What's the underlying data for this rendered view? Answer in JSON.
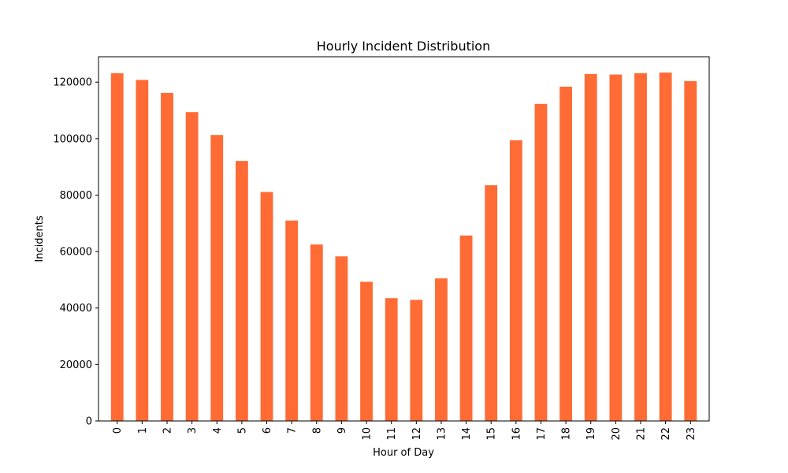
{
  "chart_data": {
    "type": "bar",
    "title": "Hourly Incident Distribution",
    "xlabel": "Hour of Day",
    "ylabel": "Incidents",
    "categories": [
      "0",
      "1",
      "2",
      "3",
      "4",
      "5",
      "6",
      "7",
      "8",
      "9",
      "10",
      "11",
      "12",
      "13",
      "14",
      "15",
      "16",
      "17",
      "18",
      "19",
      "20",
      "21",
      "22",
      "23"
    ],
    "values": [
      123200,
      120800,
      116200,
      109400,
      101300,
      92100,
      81100,
      71000,
      62500,
      58300,
      49300,
      43500,
      42900,
      50500,
      65700,
      83500,
      99400,
      112300,
      118400,
      122900,
      122700,
      123200,
      123400,
      120400
    ],
    "ylim": [
      0,
      129000
    ],
    "yticks": [
      0,
      20000,
      40000,
      60000,
      80000,
      100000,
      120000
    ],
    "bar_color": "#ff6b35",
    "grid": false
  }
}
